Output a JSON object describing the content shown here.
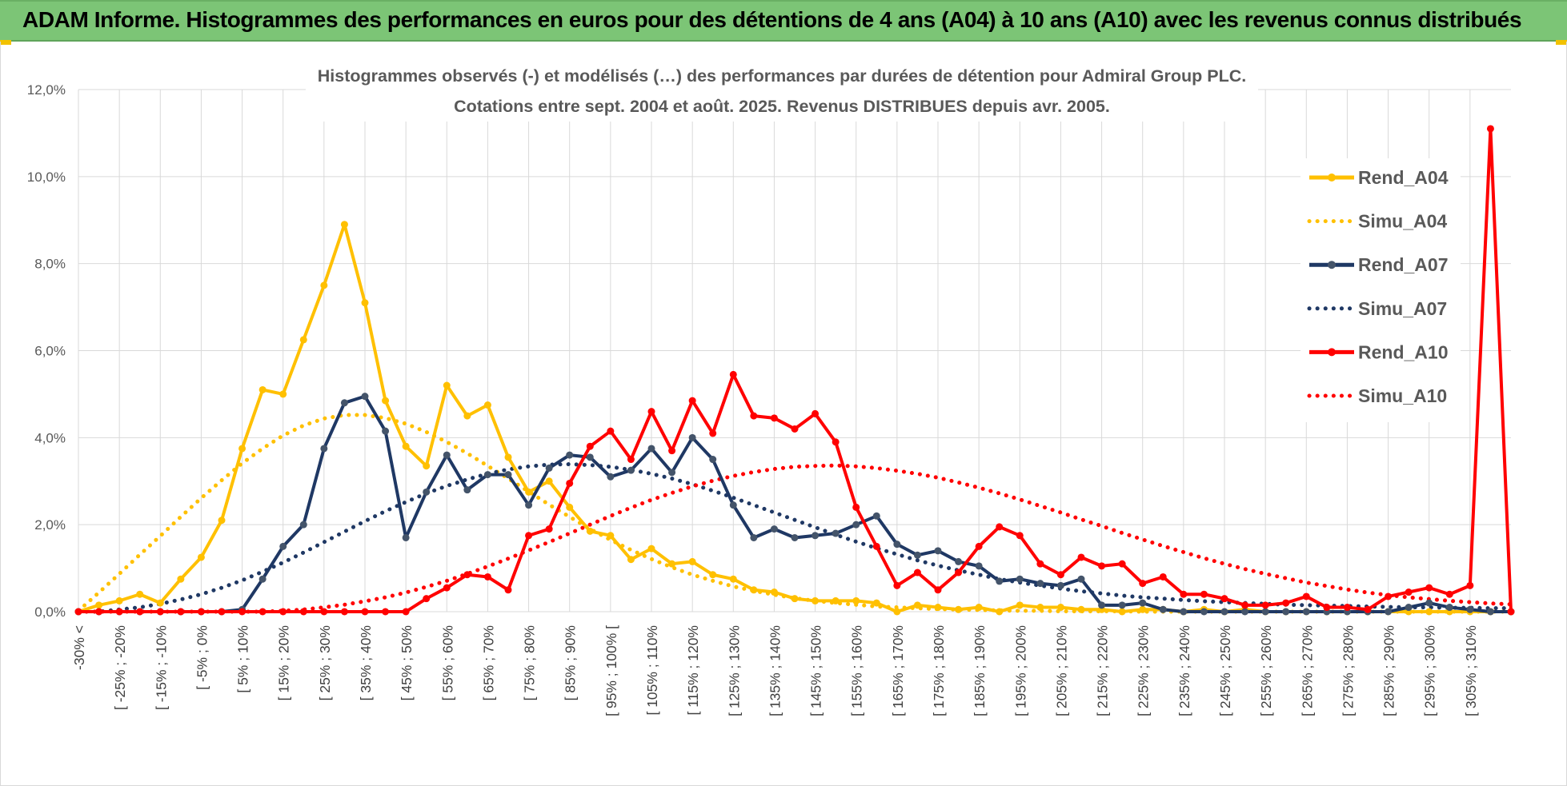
{
  "header": {
    "title": "ADAM Informe. Histogrammes des performances en euros pour des détentions de 4 ans (A04) à 10 ans (A10) avec les revenus connus distribués"
  },
  "chart_data": {
    "type": "line",
    "title": "Histogrammes observés (-) et modélisés (…) des performances par durées de détention pour Admiral Group PLC.",
    "subtitle": "Cotations entre sept. 2004 et août. 2025. Revenus DISTRIBUES depuis avr. 2005.",
    "ylim": [
      0,
      12
    ],
    "y_ticks": [
      "0,0%",
      "2,0%",
      "4,0%",
      "6,0%",
      "8,0%",
      "10,0%",
      "12,0%"
    ],
    "grid": true,
    "legend_position": "right",
    "colors": {
      "A04": "#ffc000",
      "A07": "#1f3864",
      "A10": "#ff0000",
      "grid": "#d9d9d9",
      "header": "#7cc576"
    },
    "x_labels": [
      "-30% <",
      "[ -25% ; -20%",
      "[ -15% ; -10%",
      "[ -5% ; 0%",
      "[ 5% ; 10%",
      "[ 15% ; 20%",
      "[ 25% ; 30%",
      "[ 35% ; 40%",
      "[ 45% ; 50%",
      "[ 55% ; 60%",
      "[ 65% ; 70%",
      "[ 75% ; 80%",
      "[ 85% ; 90%",
      "[ 95% ; 100% [",
      "[ 105% ; 110%",
      "[ 115% ; 120%",
      "[ 125% ; 130%",
      "[ 135% ; 140%",
      "[ 145% ; 150%",
      "[ 155% ; 160%",
      "[ 165% ; 170%",
      "[ 175% ; 180%",
      "[ 185% ; 190%",
      "[ 195% ; 200%",
      "[ 205% ; 210%",
      "[ 215% ; 220%",
      "[ 225% ; 230%",
      "[ 235% ; 240%",
      "[ 245% ; 250%",
      "[ 255% ; 260%",
      "[ 265% ; 270%",
      "[ 275% ; 280%",
      "[ 285% ; 290%",
      "[ 295% ; 300%",
      "[ 305% ; 310%"
    ],
    "series": [
      {
        "name": "Rend_A04",
        "style": "solid",
        "color": "#ffc000",
        "values": [
          0.0,
          0.15,
          0.25,
          0.4,
          0.2,
          0.75,
          1.25,
          2.1,
          3.75,
          5.1,
          5.0,
          6.25,
          7.5,
          8.9,
          7.1,
          4.85,
          3.8,
          3.35,
          5.2,
          4.5,
          4.75,
          3.55,
          2.75,
          3.0,
          2.4,
          1.85,
          1.75,
          1.2,
          1.45,
          1.1,
          1.15,
          0.85,
          0.75,
          0.5,
          0.45,
          0.3,
          0.25,
          0.25,
          0.25,
          0.2,
          0.0,
          0.15,
          0.1,
          0.05,
          0.1,
          0.0,
          0.15,
          0.1,
          0.1,
          0.05,
          0.05,
          0.0,
          0.05,
          0.05,
          0.0,
          0.05,
          0.0,
          0.05,
          0.0,
          0.0,
          0.0,
          0.0,
          0.0,
          0.0,
          0.0,
          0.0,
          0.0,
          0.0,
          0.0,
          0.0,
          0.0
        ]
      },
      {
        "name": "Simu_A04",
        "style": "dotted",
        "color": "#ffc000",
        "values": [
          0.02,
          0.44,
          0.87,
          1.31,
          1.74,
          2.18,
          2.61,
          3.02,
          3.41,
          3.75,
          4.05,
          4.28,
          4.44,
          4.52,
          4.52,
          4.45,
          4.32,
          4.13,
          3.9,
          3.64,
          3.35,
          3.06,
          2.76,
          2.46,
          2.18,
          1.9,
          1.65,
          1.42,
          1.21,
          1.02,
          0.85,
          0.71,
          0.58,
          0.48,
          0.39,
          0.31,
          0.25,
          0.2,
          0.16,
          0.12,
          0.1,
          0.08,
          0.06,
          0.05,
          0.04,
          0.03,
          0.02,
          0.02,
          0.01,
          0.01,
          0.01,
          0.01,
          0.0,
          0.0,
          0.0,
          0.0,
          0.0,
          0.0,
          0.0,
          0.0,
          0.0,
          0.0,
          0.0,
          0.0,
          0.0,
          0.0,
          0.0,
          0.0,
          0.0,
          0.0,
          0.0
        ]
      },
      {
        "name": "Rend_A07",
        "style": "solid",
        "color": "#1f3864",
        "values": [
          0.0,
          0.0,
          0.0,
          0.0,
          0.0,
          0.0,
          0.0,
          0.0,
          0.05,
          0.75,
          1.5,
          2.0,
          3.75,
          4.8,
          4.95,
          4.15,
          1.7,
          2.75,
          3.6,
          2.8,
          3.15,
          3.15,
          2.45,
          3.3,
          3.6,
          3.55,
          3.1,
          3.25,
          3.75,
          3.2,
          4.0,
          3.5,
          2.45,
          1.7,
          1.9,
          1.7,
          1.75,
          1.8,
          2.0,
          2.2,
          1.55,
          1.3,
          1.4,
          1.15,
          1.05,
          0.7,
          0.75,
          0.65,
          0.6,
          0.75,
          0.15,
          0.15,
          0.2,
          0.05,
          0.0,
          0.0,
          0.0,
          0.0,
          0.0,
          0.0,
          0.0,
          0.0,
          0.0,
          0.0,
          0.0,
          0.1,
          0.2,
          0.1,
          0.05,
          0.0,
          0.0
        ]
      },
      {
        "name": "Simu_A07",
        "style": "dotted",
        "color": "#1f3864",
        "values": [
          0.0,
          0.0,
          0.05,
          0.1,
          0.18,
          0.28,
          0.4,
          0.55,
          0.72,
          0.92,
          1.13,
          1.36,
          1.6,
          1.84,
          2.08,
          2.31,
          2.52,
          2.72,
          2.89,
          3.04,
          3.17,
          3.27,
          3.34,
          3.38,
          3.39,
          3.37,
          3.33,
          3.26,
          3.17,
          3.06,
          2.93,
          2.78,
          2.62,
          2.45,
          2.28,
          2.11,
          1.94,
          1.77,
          1.61,
          1.46,
          1.32,
          1.18,
          1.06,
          0.95,
          0.85,
          0.75,
          0.67,
          0.6,
          0.53,
          0.47,
          0.42,
          0.37,
          0.33,
          0.3,
          0.27,
          0.24,
          0.22,
          0.2,
          0.18,
          0.16,
          0.15,
          0.14,
          0.13,
          0.12,
          0.11,
          0.1,
          0.1,
          0.09,
          0.09,
          0.08,
          0.08
        ]
      },
      {
        "name": "Rend_A10",
        "style": "solid",
        "color": "#ff0000",
        "values": [
          0.0,
          0.0,
          0.0,
          0.0,
          0.0,
          0.0,
          0.0,
          0.0,
          0.0,
          0.0,
          0.0,
          0.0,
          0.0,
          0.0,
          0.0,
          0.0,
          0.0,
          0.3,
          0.55,
          0.85,
          0.8,
          0.5,
          1.75,
          1.9,
          2.95,
          3.8,
          4.15,
          3.5,
          4.6,
          3.7,
          4.85,
          4.1,
          5.45,
          4.5,
          4.45,
          4.2,
          4.55,
          3.9,
          2.4,
          1.5,
          0.6,
          0.9,
          0.5,
          0.9,
          1.5,
          1.95,
          1.75,
          1.1,
          0.85,
          1.25,
          1.05,
          1.1,
          0.65,
          0.8,
          0.4,
          0.4,
          0.3,
          0.15,
          0.15,
          0.2,
          0.35,
          0.1,
          0.1,
          0.05,
          0.35,
          0.45,
          0.55,
          0.4,
          0.6,
          11.1,
          0.0
        ]
      },
      {
        "name": "Simu_A10",
        "style": "dotted",
        "color": "#ff0000",
        "values": [
          0.0,
          0.0,
          0.0,
          0.0,
          0.0,
          0.0,
          0.0,
          0.0,
          0.0,
          0.0,
          0.02,
          0.05,
          0.1,
          0.16,
          0.24,
          0.33,
          0.44,
          0.57,
          0.71,
          0.87,
          1.04,
          1.22,
          1.41,
          1.6,
          1.8,
          2.0,
          2.2,
          2.39,
          2.57,
          2.73,
          2.88,
          3.01,
          3.12,
          3.21,
          3.28,
          3.33,
          3.35,
          3.36,
          3.34,
          3.3,
          3.24,
          3.17,
          3.08,
          2.97,
          2.85,
          2.72,
          2.58,
          2.43,
          2.28,
          2.12,
          1.97,
          1.81,
          1.66,
          1.51,
          1.37,
          1.23,
          1.1,
          0.98,
          0.87,
          0.77,
          0.67,
          0.59,
          0.51,
          0.44,
          0.38,
          0.33,
          0.29,
          0.25,
          0.22,
          0.19,
          0.17
        ]
      }
    ]
  }
}
